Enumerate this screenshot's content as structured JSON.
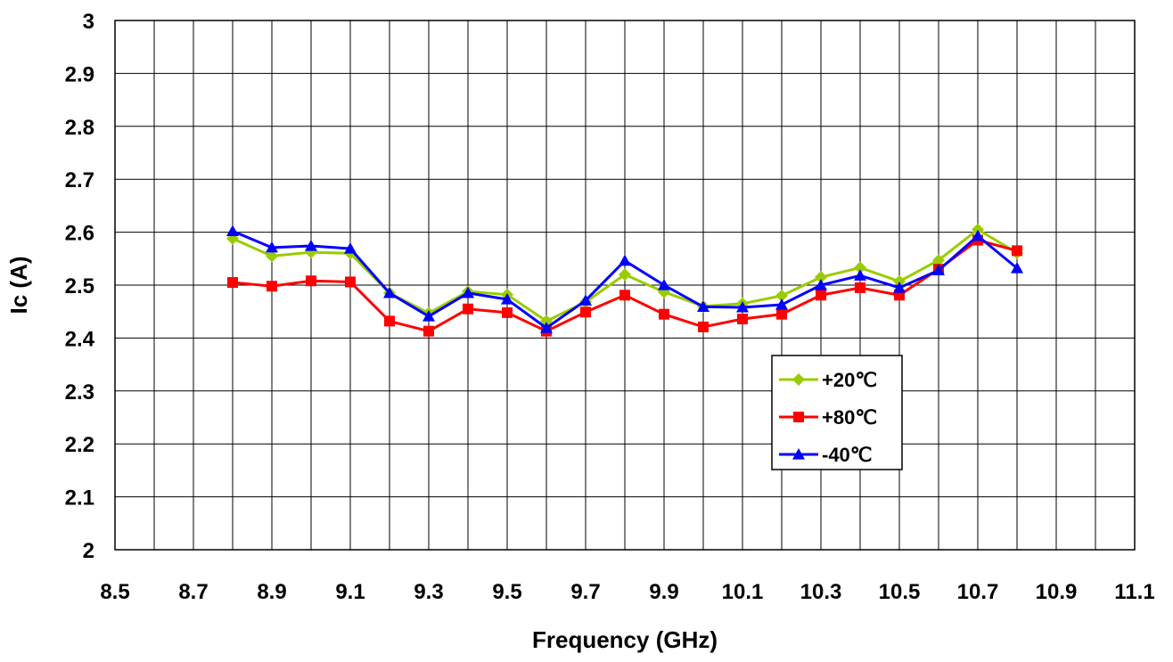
{
  "chart_data": {
    "type": "line",
    "title": "",
    "xlabel": "Frequency (GHz)",
    "ylabel": "Ic (A)",
    "xlim": [
      8.5,
      11.1
    ],
    "ylim": [
      2,
      3
    ],
    "x_ticks": [
      "8.5",
      "8.7",
      "8.9",
      "9.1",
      "9.3",
      "9.5",
      "9.7",
      "9.9",
      "10.1",
      "10.3",
      "10.5",
      "10.7",
      "10.9",
      "11.1"
    ],
    "y_ticks": [
      "2",
      "2.1",
      "2.2",
      "2.3",
      "2.4",
      "2.5",
      "2.6",
      "2.7",
      "2.8",
      "2.9",
      "3"
    ],
    "grid": true,
    "legend_position": "right-center",
    "x": [
      8.8,
      8.9,
      9.0,
      9.1,
      9.2,
      9.3,
      9.4,
      9.5,
      9.6,
      9.7,
      9.8,
      9.9,
      10.0,
      10.1,
      10.2,
      10.3,
      10.4,
      10.5,
      10.6,
      10.7,
      10.8
    ],
    "series": [
      {
        "name": "+20℃",
        "color": "#99cc00",
        "marker": "diamond",
        "values": [
          2.588,
          2.555,
          2.562,
          2.56,
          2.485,
          2.447,
          2.488,
          2.482,
          2.432,
          2.468,
          2.52,
          2.487,
          2.46,
          2.465,
          2.48,
          2.515,
          2.533,
          2.507,
          2.547,
          2.605,
          2.561
        ]
      },
      {
        "name": "+80℃",
        "color": "#ff0000",
        "marker": "square",
        "values": [
          2.505,
          2.498,
          2.508,
          2.506,
          2.432,
          2.413,
          2.455,
          2.448,
          2.413,
          2.449,
          2.481,
          2.445,
          2.421,
          2.436,
          2.445,
          2.481,
          2.495,
          2.481,
          2.53,
          2.585,
          2.565
        ]
      },
      {
        "name": "-40℃",
        "color": "#0000ff",
        "marker": "triangle",
        "values": [
          2.602,
          2.571,
          2.574,
          2.569,
          2.485,
          2.441,
          2.485,
          2.473,
          2.419,
          2.471,
          2.546,
          2.5,
          2.459,
          2.458,
          2.463,
          2.5,
          2.518,
          2.495,
          2.528,
          2.593,
          2.532
        ]
      }
    ]
  }
}
